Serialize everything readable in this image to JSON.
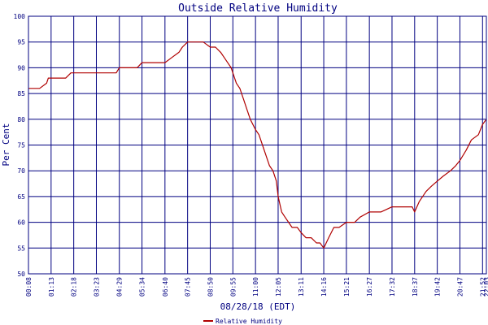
{
  "chart_data": {
    "type": "line",
    "title": "Outside Relative Humidity",
    "xlabel": "08/28/18 (EDT)",
    "ylabel": "Per Cent",
    "ylim": [
      50,
      100
    ],
    "y_ticks": [
      "50",
      "55",
      "60",
      "65",
      "70",
      "75",
      "80",
      "85",
      "90",
      "95",
      "100"
    ],
    "x_ticks": [
      "00:08",
      "01:13",
      "02:18",
      "03:23",
      "04:29",
      "05:34",
      "06:40",
      "07:45",
      "08:50",
      "09:55",
      "11:00",
      "12:05",
      "13:11",
      "14:16",
      "15:21",
      "16:27",
      "17:32",
      "18:37",
      "19:42",
      "20:47",
      "21:52",
      "22:03"
    ],
    "grid": true,
    "legend_position": "bottom",
    "colors": {
      "series": "#b00000",
      "grid": "#000080",
      "text": "#000080"
    },
    "series": [
      {
        "name": "Relative Humidity",
        "x": [
          "00:08",
          "00:40",
          "01:00",
          "01:05",
          "01:13",
          "01:30",
          "01:55",
          "02:10",
          "02:18",
          "03:00",
          "03:23",
          "04:00",
          "04:20",
          "04:29",
          "05:00",
          "05:20",
          "05:34",
          "06:00",
          "06:40",
          "07:00",
          "07:20",
          "07:30",
          "07:45",
          "08:00",
          "08:10",
          "08:30",
          "08:50",
          "09:05",
          "09:20",
          "09:30",
          "09:40",
          "09:50",
          "09:55",
          "10:05",
          "10:15",
          "10:25",
          "10:35",
          "10:45",
          "11:00",
          "11:10",
          "11:20",
          "11:30",
          "11:40",
          "11:50",
          "12:00",
          "12:05",
          "12:15",
          "12:25",
          "12:35",
          "12:45",
          "13:00",
          "13:11",
          "13:25",
          "13:40",
          "13:55",
          "14:05",
          "14:16",
          "14:30",
          "14:45",
          "15:00",
          "15:21",
          "15:45",
          "16:00",
          "16:27",
          "16:45",
          "17:00",
          "17:32",
          "17:50",
          "18:10",
          "18:30",
          "18:37",
          "18:50",
          "19:10",
          "19:25",
          "19:42",
          "20:00",
          "20:20",
          "20:35",
          "20:47",
          "21:05",
          "21:20",
          "21:40",
          "21:52",
          "22:03"
        ],
        "y": [
          86,
          86,
          87,
          88,
          88,
          88,
          88,
          89,
          89,
          89,
          89,
          89,
          89,
          90,
          90,
          90,
          91,
          91,
          91,
          92,
          93,
          94,
          95,
          95,
          95,
          95,
          94,
          94,
          93,
          92,
          91,
          90,
          89,
          87,
          86,
          84,
          82,
          80,
          78,
          77,
          75,
          73,
          71,
          70,
          68,
          65,
          62,
          61,
          60,
          59,
          59,
          58,
          57,
          57,
          56,
          56,
          55,
          57,
          59,
          59,
          60,
          60,
          61,
          62,
          62,
          62,
          63,
          63,
          63,
          63,
          62,
          64,
          66,
          67,
          68,
          69,
          70,
          71,
          72,
          74,
          76,
          77,
          79,
          80
        ]
      }
    ]
  }
}
